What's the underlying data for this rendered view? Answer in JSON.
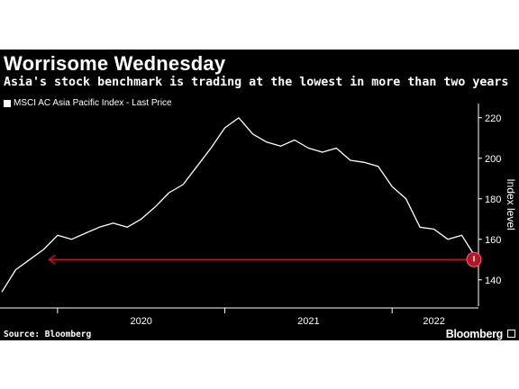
{
  "title": "Worrisome Wednesday",
  "subtitle": "Asia's stock benchmark is trading at the lowest in more than two years",
  "source": "Source: Bloomberg",
  "brand": "Bloomberg",
  "colors": {
    "background": "#000000",
    "line": "#ffffff",
    "arrow": "#c0141c",
    "marker": "#b0182a"
  },
  "chart_data": {
    "type": "line",
    "title": "Worrisome Wednesday",
    "subtitle": "Asia's stock benchmark is trading at the lowest in more than two years",
    "ylabel": "Index level",
    "xlabel": "",
    "ylim": [
      127,
      227
    ],
    "y_ticks": [
      140,
      160,
      180,
      200,
      220
    ],
    "x_ticks": [
      "2020",
      "2021",
      "2022"
    ],
    "legend": "top-left",
    "grid": false,
    "series": [
      {
        "name": "MSCI AC Asia Pacific Index - Last Price",
        "x": [
          "2019-09",
          "2019-10",
          "2019-11",
          "2019-12",
          "2020-01",
          "2020-02",
          "2020-03",
          "2020-04",
          "2020-05",
          "2020-06",
          "2020-07",
          "2020-08",
          "2020-09",
          "2020-10",
          "2020-11",
          "2020-12",
          "2021-01",
          "2021-02",
          "2021-03",
          "2021-04",
          "2021-05",
          "2021-06",
          "2021-07",
          "2021-08",
          "2021-09",
          "2021-10",
          "2021-11",
          "2021-12",
          "2022-01",
          "2022-02",
          "2022-03",
          "2022-04",
          "2022-05",
          "2022-06",
          "2022-07"
        ],
        "values": [
          134,
          145,
          150,
          155,
          162,
          160,
          163,
          166,
          168,
          166,
          170,
          176,
          183,
          187,
          196,
          205,
          215,
          220,
          212,
          208,
          206,
          209,
          205,
          203,
          205,
          199,
          198,
          196,
          186,
          180,
          166,
          165,
          160,
          162,
          151
        ]
      }
    ],
    "annotations": [
      {
        "type": "arrow",
        "from": "2022-07",
        "to": "2019-12",
        "value": 150,
        "description": "lowest level since"
      },
      {
        "type": "marker",
        "at": "2022-07",
        "value": 150
      }
    ]
  }
}
